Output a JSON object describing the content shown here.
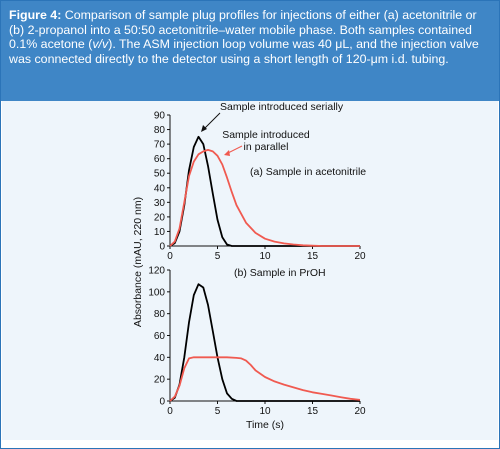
{
  "caption": {
    "lead": "Figure 4:",
    "text_before_italic": " Comparison of sample plug profiles for injections of either (a) acetonitrile or (b) 2-propanol into a 50:50 acetonitrile–water mobile phase. Both samples contained 0.1% acetone (",
    "italic": "v/v",
    "text_after_italic": "). The ASM injection loop volume was 40 μL, and the injection valve was connected directly to the detector using a short length of 120-μm i.d. tubing."
  },
  "colors": {
    "caption_bg": "#3f86c6",
    "series_serial": "#000000",
    "series_parallel": "#f05a50"
  },
  "chart_data": [
    {
      "type": "line",
      "panel_label": "(a) Sample in acetonitrile",
      "xlim": [
        0,
        20
      ],
      "ylim": [
        0,
        90
      ],
      "x_ticks": [
        0,
        5,
        10,
        15,
        20
      ],
      "y_ticks": [
        0,
        10,
        20,
        30,
        40,
        50,
        60,
        70,
        80,
        90
      ],
      "annotations": [
        {
          "text": "Sample introduced serially"
        },
        {
          "text_lines": [
            "Sample introduced",
            "in parallel"
          ]
        }
      ],
      "series": [
        {
          "color": "#000000",
          "x": [
            0,
            0.5,
            1,
            1.5,
            2,
            2.5,
            3,
            3.5,
            4,
            4.5,
            5,
            5.5,
            6,
            6.5,
            20
          ],
          "y": [
            0,
            2,
            10,
            28,
            52,
            68,
            75,
            70,
            55,
            36,
            18,
            6,
            1,
            0,
            0
          ]
        },
        {
          "color": "#f05a50",
          "x": [
            0,
            0.5,
            1,
            1.5,
            2,
            2.5,
            3,
            3.5,
            4,
            4.5,
            5,
            5.5,
            6,
            6.5,
            7,
            8,
            9,
            10,
            11,
            12,
            13,
            14,
            15,
            16,
            20
          ],
          "y": [
            0,
            3,
            12,
            30,
            48,
            58,
            63,
            65,
            66,
            65,
            62,
            56,
            47,
            37,
            28,
            16,
            9,
            5,
            3,
            1.8,
            1,
            0.5,
            0.2,
            0,
            0
          ]
        }
      ]
    },
    {
      "type": "line",
      "panel_label": "(b) Sample in PrOH",
      "xlabel": "Time (s)",
      "xlim": [
        0,
        20
      ],
      "ylim": [
        0,
        120
      ],
      "x_ticks": [
        0,
        5,
        10,
        15,
        20
      ],
      "y_ticks": [
        0,
        20,
        40,
        60,
        80,
        100,
        120
      ],
      "series": [
        {
          "color": "#000000",
          "x": [
            0,
            0.5,
            1,
            1.5,
            2,
            2.5,
            3,
            3.5,
            4,
            4.5,
            5,
            5.5,
            6,
            6.5,
            7,
            20
          ],
          "y": [
            0,
            3,
            15,
            40,
            72,
            97,
            107,
            104,
            88,
            64,
            40,
            20,
            7,
            2,
            0,
            0
          ]
        },
        {
          "color": "#f05a50",
          "x": [
            0,
            0.5,
            1,
            1.5,
            2,
            2.5,
            3,
            4,
            5,
            6,
            7,
            7.5,
            8,
            8.5,
            9,
            10,
            11,
            12,
            13,
            14,
            15,
            16,
            17,
            18,
            19,
            20
          ],
          "y": [
            0,
            4,
            14,
            30,
            39,
            40,
            40,
            40,
            40,
            40,
            39.5,
            39,
            37,
            33,
            28,
            22,
            18,
            15,
            12.5,
            10,
            8,
            6.5,
            5,
            3.5,
            2,
            1
          ]
        }
      ]
    }
  ],
  "shared_ylabel": "Absorbance (mAU, 220 nm)"
}
